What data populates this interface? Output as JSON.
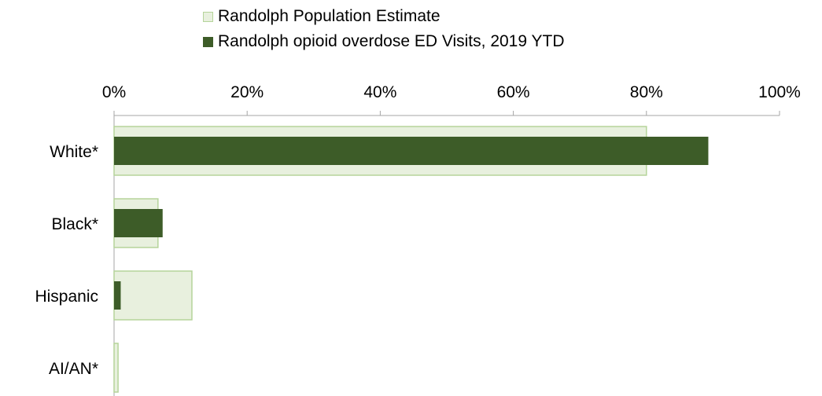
{
  "chart_data": {
    "type": "bar",
    "orientation": "horizontal",
    "title": "",
    "categories": [
      "White*",
      "Black*",
      "Hispanic",
      "AI/AN*"
    ],
    "series": [
      {
        "name": "Randolph Population Estimate",
        "values": [
          80,
          6.6,
          11.7,
          0.6
        ],
        "color": "#e8f0de",
        "border": "#b5d49a"
      },
      {
        "name": "Randolph opioid overdose ED Visits, 2019 YTD",
        "values": [
          89.3,
          7.3,
          1.0,
          0
        ],
        "color": "#3d5c28"
      }
    ],
    "xlim": [
      0,
      100
    ],
    "x_ticks": [
      "0%",
      "20%",
      "40%",
      "60%",
      "80%",
      "100%"
    ],
    "legend_position": "top",
    "grid": false
  }
}
